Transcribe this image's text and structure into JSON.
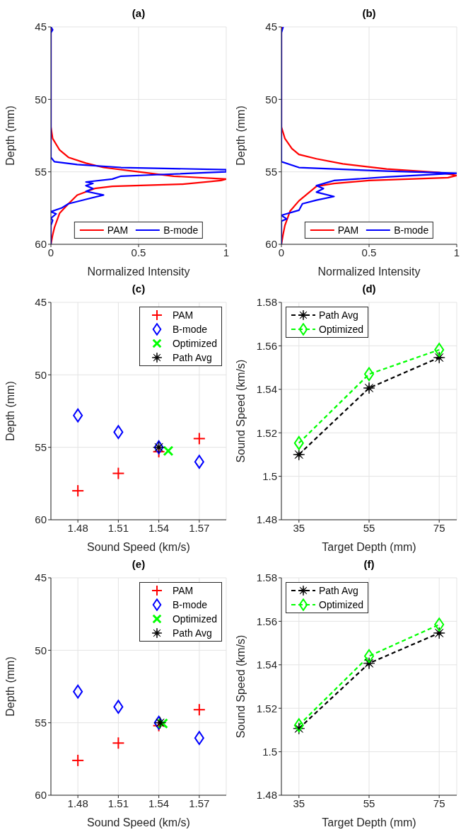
{
  "chart_data": [
    {
      "type": "line",
      "title": "(a)",
      "xlabel": "Normalized Intensity",
      "ylabel": "Depth (mm)",
      "xlim": [
        0,
        1
      ],
      "xticks": [
        0,
        0.5,
        1
      ],
      "ylim": [
        60,
        45
      ],
      "yticks": [
        45,
        50,
        55,
        60
      ],
      "grid": true,
      "legend": "bottom",
      "series": [
        {
          "name": "PAM",
          "color": "#ff0000",
          "values": [
            45,
            51.9,
            52.7,
            53.5,
            54.0,
            54.4,
            54.7,
            55.0,
            55.3,
            55.5,
            55.6,
            55.85,
            56.0,
            56.15,
            56.6,
            57.2,
            57.85,
            58.85,
            59.35,
            60
          ],
          "x": [
            0,
            0,
            0.01,
            0.05,
            0.1,
            0.2,
            0.3,
            0.5,
            0.7,
            1,
            0.97,
            0.75,
            0.35,
            0.25,
            0.15,
            0.1,
            0.05,
            0.02,
            0.01,
            0
          ]
        },
        {
          "name": "B-mode",
          "color": "#0000ff",
          "values": [
            45,
            45.2,
            45.4,
            54.0,
            54.3,
            54.5,
            54.7,
            54.85,
            55.0,
            55.2,
            55.3,
            55.5,
            55.7,
            55.8,
            55.95,
            56.15,
            56.35,
            56.6,
            56.9,
            57.2,
            57.5,
            57.75,
            57.9,
            58.2,
            58.35,
            58.7,
            60
          ],
          "x": [
            0,
            0.01,
            0,
            0,
            0.02,
            0.15,
            0.4,
            1,
            1,
            0.6,
            0.4,
            0.35,
            0.2,
            0.24,
            0.2,
            0.24,
            0.2,
            0.3,
            0.2,
            0.1,
            0.06,
            0,
            0.03,
            0,
            0.01,
            0,
            0
          ]
        }
      ]
    },
    {
      "type": "line",
      "title": "(b)",
      "xlabel": "Normalized Intensity",
      "ylabel": "Depth (mm)",
      "xlim": [
        0,
        1
      ],
      "xticks": [
        0,
        0.5,
        1
      ],
      "ylim": [
        60,
        45
      ],
      "yticks": [
        45,
        50,
        55,
        60
      ],
      "grid": true,
      "legend": "bottom",
      "series": [
        {
          "name": "PAM",
          "color": "#ff0000",
          "values": [
            45,
            51.9,
            52.7,
            53.4,
            53.8,
            54.1,
            54.45,
            54.8,
            55.05,
            55.25,
            55.4,
            55.6,
            55.8,
            56.0,
            56.5,
            57.0,
            57.7,
            58.7,
            59.3,
            60
          ],
          "x": [
            0,
            0,
            0.02,
            0.06,
            0.1,
            0.2,
            0.35,
            0.6,
            0.9,
            1,
            0.95,
            0.5,
            0.3,
            0.2,
            0.15,
            0.1,
            0.05,
            0.02,
            0.01,
            0
          ]
        },
        {
          "name": "B-mode",
          "color": "#0000ff",
          "values": [
            45,
            45.4,
            45.8,
            54.3,
            54.7,
            54.95,
            55.1,
            55.35,
            55.6,
            55.95,
            56.15,
            56.4,
            56.7,
            56.95,
            57.2,
            57.65,
            58.0,
            58.25,
            58.4,
            60
          ],
          "x": [
            0.01,
            0,
            0,
            0,
            0.1,
            0.6,
            1,
            0.6,
            0.3,
            0.2,
            0.24,
            0.2,
            0.3,
            0.2,
            0.12,
            0.1,
            0,
            0.03,
            0,
            0
          ]
        }
      ]
    },
    {
      "type": "scatter",
      "title": "(c)",
      "xlabel": "Sound Speed (km/s)",
      "ylabel": "Depth (mm)",
      "xlim": [
        1.46,
        1.59
      ],
      "xticks": [
        1.48,
        1.51,
        1.54,
        1.57
      ],
      "ylim": [
        60,
        45
      ],
      "yticks": [
        45,
        50,
        55,
        60
      ],
      "grid": true,
      "legend": "top right",
      "series": [
        {
          "name": "PAM",
          "color": "#ff0000",
          "marker": "cross",
          "x": [
            1.48,
            1.51,
            1.54,
            1.57
          ],
          "values": [
            58.0,
            56.8,
            55.3,
            54.4
          ]
        },
        {
          "name": "B-mode",
          "color": "#0000ff",
          "marker": "diamond",
          "x": [
            1.48,
            1.51,
            1.54,
            1.57
          ],
          "values": [
            52.8,
            53.95,
            55.0,
            56.0
          ]
        },
        {
          "name": "Optimized",
          "color": "#00ff00",
          "marker": "x",
          "x": [
            1.547
          ],
          "values": [
            55.25
          ]
        },
        {
          "name": "Path Avg",
          "color": "#000000",
          "marker": "star",
          "x": [
            1.54
          ],
          "values": [
            55.0
          ]
        }
      ]
    },
    {
      "type": "line",
      "title": "(d)",
      "xlabel": "Target Depth (mm)",
      "ylabel": "Sound Speed (km/s)",
      "xlim": [
        30,
        80
      ],
      "xticks": [
        35,
        55,
        75
      ],
      "ylim": [
        1.48,
        1.58
      ],
      "yticks": [
        1.48,
        1.5,
        1.52,
        1.54,
        1.56,
        1.58
      ],
      "grid": true,
      "legend": "top left",
      "line_style": "dashed",
      "x": [
        35,
        55,
        75
      ],
      "series": [
        {
          "name": "Path Avg",
          "color": "#000000",
          "marker": "star",
          "values": [
            1.51,
            1.5406,
            1.5546
          ]
        },
        {
          "name": "Optimized",
          "color": "#00ff00",
          "marker": "diamond",
          "values": [
            1.5153,
            1.547,
            1.5582
          ]
        }
      ]
    },
    {
      "type": "scatter",
      "title": "(e)",
      "xlabel": "Sound Speed (km/s)",
      "ylabel": "Depth (mm)",
      "xlim": [
        1.46,
        1.59
      ],
      "xticks": [
        1.48,
        1.51,
        1.54,
        1.57
      ],
      "ylim": [
        60,
        45
      ],
      "yticks": [
        45,
        50,
        55,
        60
      ],
      "grid": true,
      "legend": "top right",
      "series": [
        {
          "name": "PAM",
          "color": "#ff0000",
          "marker": "cross",
          "x": [
            1.48,
            1.51,
            1.54,
            1.57
          ],
          "values": [
            57.6,
            56.4,
            55.2,
            54.1
          ]
        },
        {
          "name": "B-mode",
          "color": "#0000ff",
          "marker": "diamond",
          "x": [
            1.48,
            1.51,
            1.54,
            1.57
          ],
          "values": [
            52.85,
            53.9,
            55.0,
            56.05
          ]
        },
        {
          "name": "Optimized",
          "color": "#00ff00",
          "marker": "x",
          "x": [
            1.543
          ],
          "values": [
            55.05
          ]
        },
        {
          "name": "Path Avg",
          "color": "#000000",
          "marker": "star",
          "x": [
            1.541
          ],
          "values": [
            55.0
          ]
        }
      ]
    },
    {
      "type": "line",
      "title": "(f)",
      "xlabel": "Target Depth (mm)",
      "ylabel": "Sound Speed (km/s)",
      "xlim": [
        30,
        80
      ],
      "xticks": [
        35,
        55,
        75
      ],
      "ylim": [
        1.48,
        1.58
      ],
      "yticks": [
        1.48,
        1.5,
        1.52,
        1.54,
        1.56,
        1.58
      ],
      "grid": true,
      "legend": "top left",
      "line_style": "dashed",
      "x": [
        35,
        55,
        75
      ],
      "series": [
        {
          "name": "Path Avg",
          "color": "#000000",
          "marker": "star",
          "values": [
            1.5107,
            1.5407,
            1.5546
          ]
        },
        {
          "name": "Optimized",
          "color": "#00ff00",
          "marker": "diamond",
          "values": [
            1.5122,
            1.544,
            1.5585
          ]
        }
      ]
    }
  ]
}
